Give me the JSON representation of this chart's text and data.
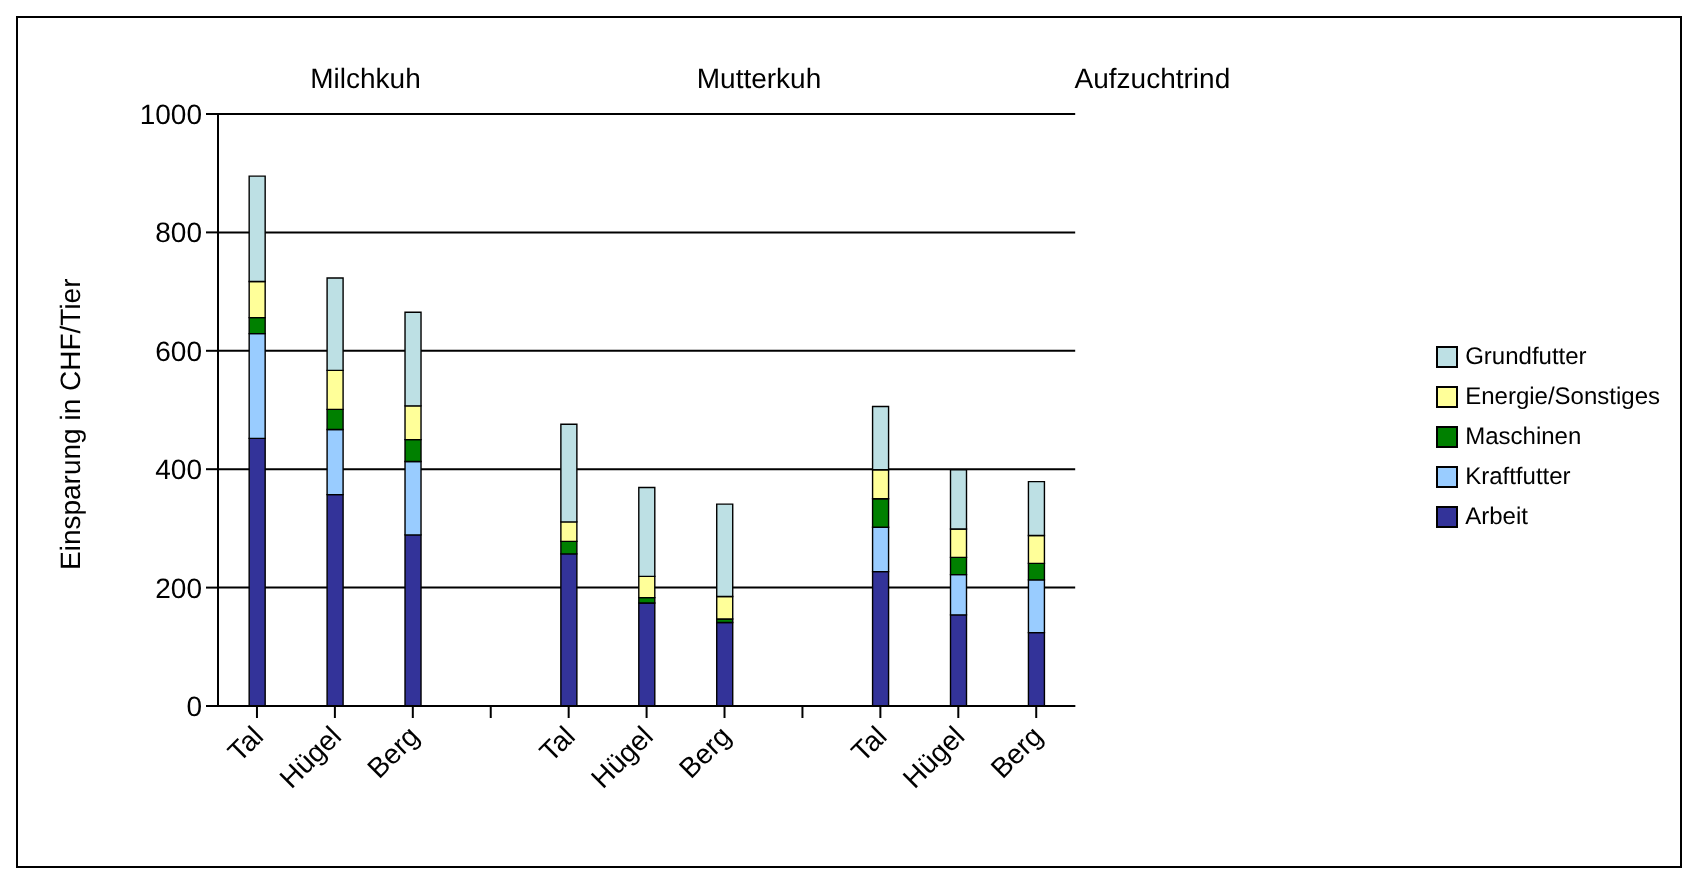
{
  "chart_data": {
    "type": "bar",
    "stacked": true,
    "ylabel": "Einsparung in CHF/Tier",
    "categories": [
      "Tal",
      "Hügel",
      "Berg",
      null,
      "Tal",
      "Hügel",
      "Berg",
      null,
      "Tal",
      "Hügel",
      "Berg"
    ],
    "annotations": [
      "Milchkuh",
      "Mutterkuh",
      "Aufzuchtrind"
    ],
    "series": [
      {
        "name": "Arbeit",
        "color": "#333399",
        "values": [
          452,
          357,
          289,
          null,
          257,
          174,
          141,
          null,
          227,
          154,
          124
        ]
      },
      {
        "name": "Kraftfutter",
        "color": "#99ccff",
        "values": [
          177,
          110,
          124,
          null,
          0,
          0,
          0,
          null,
          75,
          68,
          89
        ]
      },
      {
        "name": "Maschinen",
        "color": "#008000",
        "values": [
          27,
          34,
          37,
          null,
          21,
          9,
          6,
          null,
          48,
          29,
          28
        ]
      },
      {
        "name": "Energie/Sonstiges",
        "color": "#ffff99",
        "values": [
          61,
          66,
          57,
          null,
          33,
          36,
          38,
          null,
          49,
          48,
          47
        ]
      },
      {
        "name": "Grundfutter",
        "color": "#bde0e4",
        "values": [
          178,
          156,
          158,
          null,
          165,
          150,
          156,
          null,
          107,
          100,
          91
        ]
      }
    ],
    "ylim": [
      0,
      1000
    ],
    "yticks": [
      0,
      200,
      400,
      600,
      800,
      1000
    ],
    "grid": "y",
    "legend": "right"
  }
}
